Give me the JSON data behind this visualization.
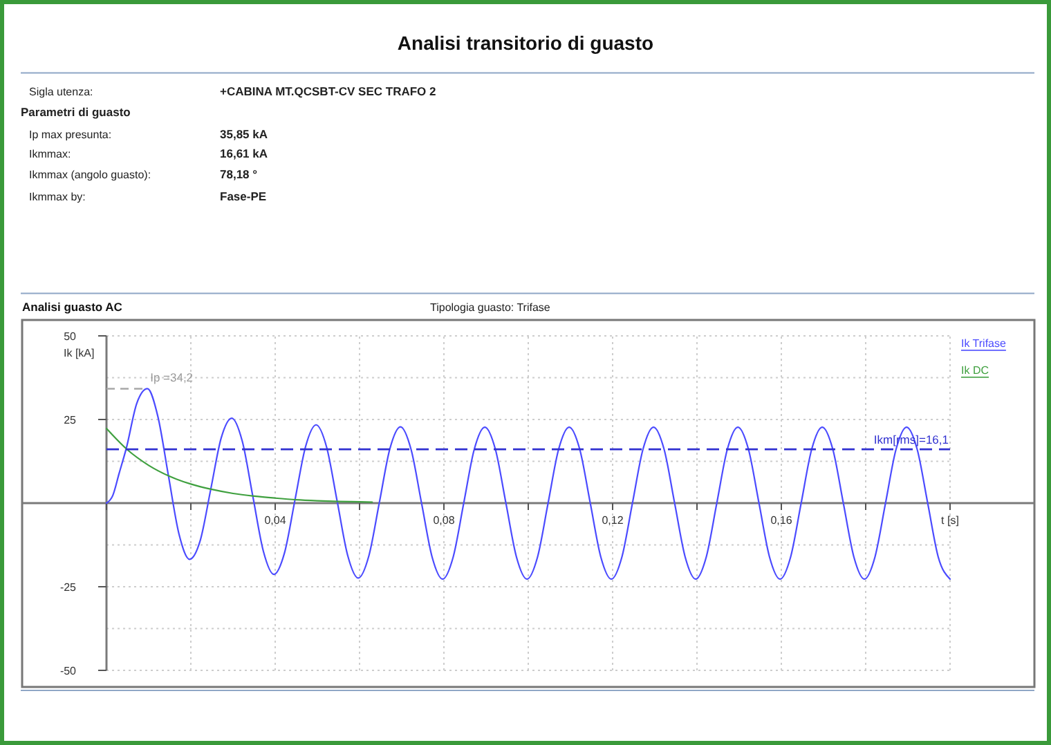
{
  "chart_data": {
    "type": "line",
    "title": "Analisi transitorio di guasto",
    "subtitle": "Analisi guasto AC",
    "xlabel": "t [s]",
    "ylabel": "Ik [kA]",
    "annotations": [
      "Sigla utenza:",
      "+CABINA MT.QCSBT-CV SEC TRAFO 2",
      "Parametri di guasto",
      "Ip max presunta:",
      "35,85 kA",
      "Ikmmax:",
      "16,61 kA",
      "Ikmmax (angolo guasto):",
      "78,18 °",
      "Ikmmax by:",
      "Fase-PE",
      "Tipologia guasto: Trifase",
      {
        "text": "Ip =34,2",
        "x": 0.0097,
        "y": 34.2
      }
    ],
    "series": [
      {
        "name": "Ik Trifase",
        "color": "#4b4bff",
        "x": [
          0,
          0.0015,
          0.003,
          0.0047,
          0.0072,
          0.0097,
          0.0122,
          0.0147,
          0.0172,
          0.0197,
          0.0222,
          0.0247,
          0.0272,
          0.0297,
          0.0322,
          0.0347,
          0.0372,
          0.0397,
          0.0422,
          0.0447,
          0.0472,
          0.0497,
          0.0522,
          0.0547,
          0.0572,
          0.0597,
          0.0622,
          0.0647,
          0.0672,
          0.0697,
          0.0722,
          0.0747,
          0.0772,
          0.0797,
          0.0822,
          0.0847,
          0.0872,
          0.0897,
          0.0922,
          0.0947,
          0.0972,
          0.0997,
          0.1022,
          0.1047,
          0.1072,
          0.1097,
          0.1122,
          0.1147,
          0.1172,
          0.1197,
          0.1222,
          0.1247,
          0.1272,
          0.1297,
          0.1322,
          0.1347,
          0.1372,
          0.1397,
          0.1422,
          0.1447,
          0.1472,
          0.1497,
          0.1522,
          0.1547,
          0.1572,
          0.1597,
          0.1622,
          0.1647,
          0.1672,
          0.1697,
          0.1722,
          0.1747,
          0.1772,
          0.1797,
          0.1822,
          0.1847,
          0.1872,
          0.1897,
          0.1922,
          0.1947,
          0.1972,
          0.2
        ],
        "values": [
          0,
          2.3,
          8.9,
          16.4,
          29.9,
          34.2,
          25.8,
          8.1,
          -9.3,
          -16.8,
          -11.3,
          4,
          19.5,
          25.4,
          18.5,
          2,
          -14.4,
          -21.3,
          -14.9,
          1,
          16.9,
          23.4,
          16.7,
          0.5,
          -15.7,
          -22.4,
          -15.8,
          0.2,
          16.3,
          22.8,
          16.1,
          0,
          -16.1,
          -22.7,
          -16.1,
          0,
          16.1,
          22.7,
          16.1,
          0,
          -16.1,
          -22.7,
          -16.1,
          0,
          16.1,
          22.7,
          16.1,
          0,
          -16.1,
          -22.7,
          -16.1,
          0,
          16.1,
          22.7,
          16.1,
          0,
          -16.1,
          -22.7,
          -16.1,
          0,
          16.1,
          22.7,
          16.1,
          0,
          -16.1,
          -22.7,
          -16.1,
          0,
          16.1,
          22.7,
          16.1,
          0,
          -16.1,
          -22.7,
          -16.1,
          0,
          16.1,
          22.7,
          16.1,
          0,
          -16.1,
          -22.7
        ]
      },
      {
        "name": "Ik DC",
        "color": "#3fa03f",
        "x": [
          0,
          0.005,
          0.01,
          0.015,
          0.02,
          0.025,
          0.03,
          0.035,
          0.04,
          0.045,
          0.05,
          0.055,
          0.06,
          0.063
        ],
        "values": [
          22.3,
          15.9,
          11.3,
          8,
          5.7,
          4.1,
          2.9,
          2.1,
          1.5,
          1,
          0.7,
          0.5,
          0.4,
          0.3
        ]
      }
    ],
    "xlim": [
      -0.02,
      0.22
    ],
    "ylim": [
      -50,
      50
    ],
    "xticks": [
      {
        "value": 0,
        "label": null
      },
      {
        "value": 0.02,
        "label": null
      },
      {
        "value": 0.04,
        "label": "0,04"
      },
      {
        "value": 0.06,
        "label": null
      },
      {
        "value": 0.08,
        "label": "0,08"
      },
      {
        "value": 0.1,
        "label": null
      },
      {
        "value": 0.12,
        "label": "0,12"
      },
      {
        "value": 0.14,
        "label": null
      },
      {
        "value": 0.16,
        "label": "0,16"
      },
      {
        "value": 0.18,
        "label": null
      },
      {
        "value": 0.2,
        "label": null
      }
    ],
    "yticks": [
      -50,
      {
        "value": -37.5,
        "label": null
      },
      -25,
      {
        "value": -12.5,
        "label": null
      },
      {
        "value": 0,
        "label": null
      },
      {
        "value": 12.5,
        "label": null
      },
      25,
      {
        "value": 37.5,
        "label": null
      },
      50
    ],
    "grid": true,
    "legend": "top right",
    "ref_lines": [
      {
        "axis": "y",
        "value": 16.1,
        "label": "Ikm[rms]=16,1",
        "color": "#3030d0",
        "line_style": "dashed"
      }
    ]
  }
}
